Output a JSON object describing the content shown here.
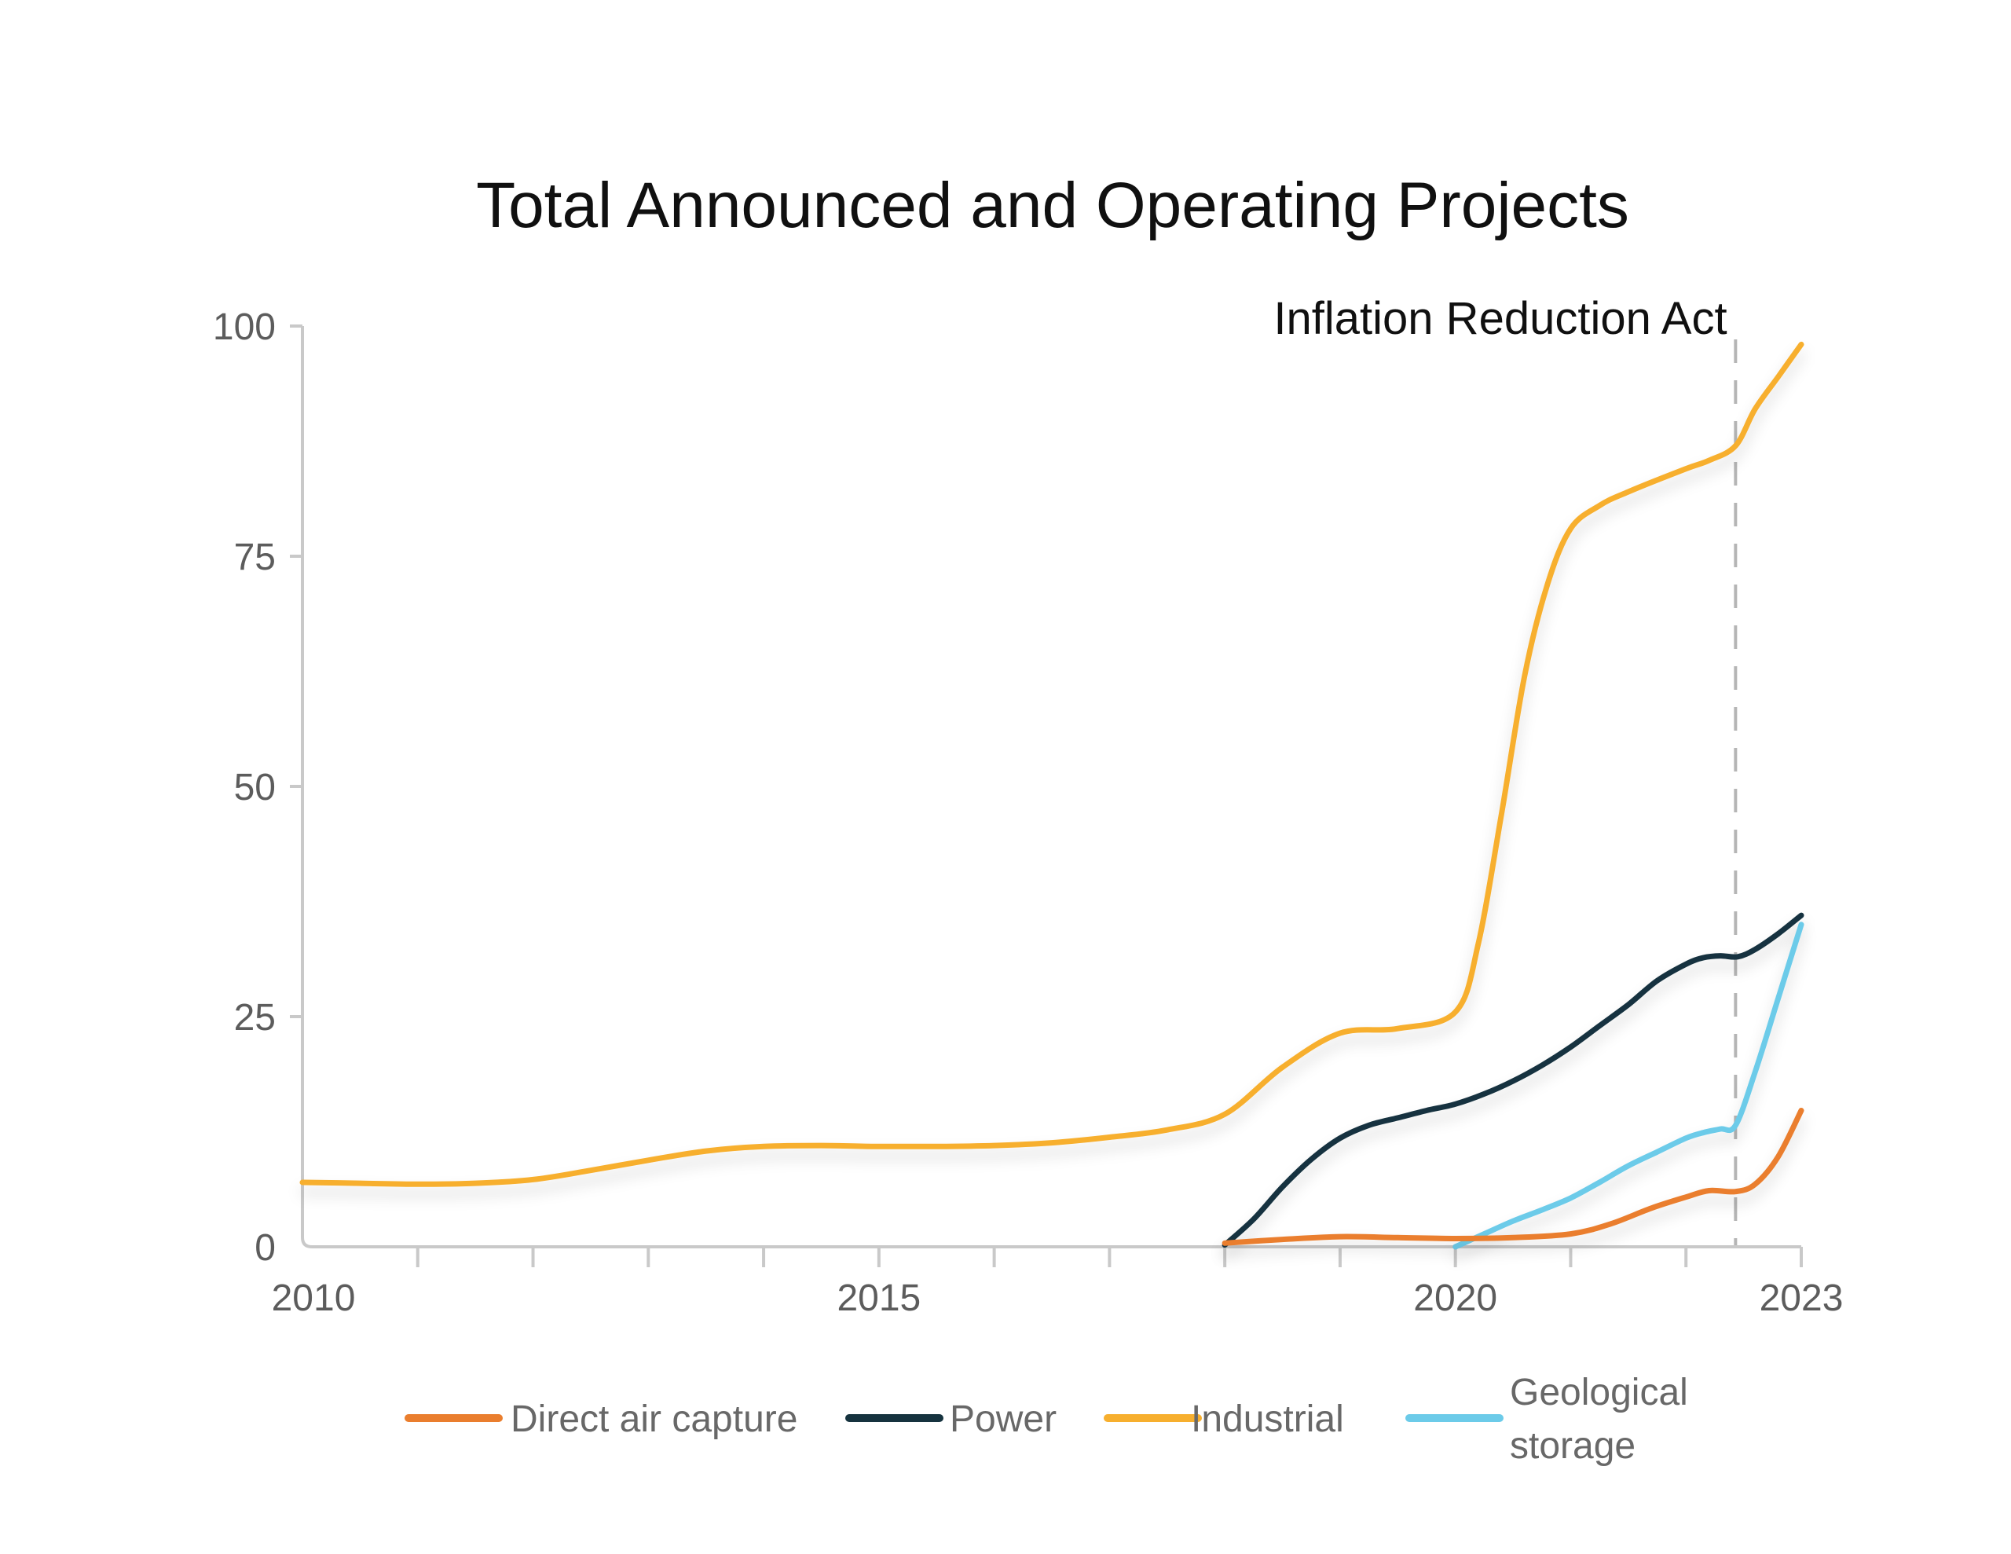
{
  "title": "Total Announced and Operating Projects",
  "annotation": {
    "text": "Inflation Reduction Act"
  },
  "y_axis": {
    "tick_labels": [
      "0",
      "25",
      "50",
      "75",
      "100"
    ]
  },
  "x_axis": {
    "tick_labels": [
      "2010",
      "2015",
      "2020",
      "2023"
    ]
  },
  "legend": {
    "items": [
      {
        "label": "Direct air capture",
        "color": "#EA7E2E"
      },
      {
        "label": "Power",
        "color": "#16333F"
      },
      {
        "label": "Industrial",
        "color": "#F7AF2E"
      },
      {
        "label": "Geological\nstorage",
        "color": "#6CCBE9"
      }
    ]
  },
  "chart_data": {
    "type": "line",
    "title": "Total Announced and Operating Projects",
    "xlabel": "",
    "ylabel": "",
    "xlim": [
      2010,
      2023
    ],
    "ylim": [
      0,
      100
    ],
    "x_tick_labeled": [
      2010,
      2015,
      2020,
      2023
    ],
    "x_minor_ticks": [
      2011,
      2012,
      2013,
      2014,
      2015,
      2016,
      2017,
      2018,
      2019,
      2020,
      2021,
      2022,
      2023
    ],
    "y_ticks": [
      0,
      25,
      50,
      75,
      100
    ],
    "grid": false,
    "legend_position": "bottom",
    "annotations": {
      "vline_x": 2022.43,
      "vline_label": "Inflation Reduction Act"
    },
    "series": [
      {
        "name": "Direct air capture",
        "color": "#EA7E2E",
        "points": [
          [
            2018,
            0.4
          ],
          [
            2018.5,
            0.8
          ],
          [
            2019,
            1.1
          ],
          [
            2019.5,
            1.0
          ],
          [
            2020,
            0.9
          ],
          [
            2020.5,
            1.0
          ],
          [
            2021,
            1.4
          ],
          [
            2021.35,
            2.5
          ],
          [
            2021.7,
            4.2
          ],
          [
            2022,
            5.4
          ],
          [
            2022.2,
            6.1
          ],
          [
            2022.43,
            6.0
          ],
          [
            2022.6,
            6.8
          ],
          [
            2022.8,
            9.8
          ],
          [
            2023,
            14.8
          ]
        ]
      },
      {
        "name": "Power",
        "color": "#16333F",
        "points": [
          [
            2018,
            0.2
          ],
          [
            2018.25,
            3.0
          ],
          [
            2018.5,
            6.5
          ],
          [
            2018.75,
            9.5
          ],
          [
            2019,
            11.8
          ],
          [
            2019.25,
            13.2
          ],
          [
            2019.5,
            14.0
          ],
          [
            2019.75,
            14.8
          ],
          [
            2020,
            15.5
          ],
          [
            2020.25,
            16.6
          ],
          [
            2020.5,
            18.0
          ],
          [
            2020.75,
            19.7
          ],
          [
            2021,
            21.7
          ],
          [
            2021.25,
            24.0
          ],
          [
            2021.5,
            26.3
          ],
          [
            2021.75,
            28.9
          ],
          [
            2022,
            30.7
          ],
          [
            2022.15,
            31.4
          ],
          [
            2022.3,
            31.6
          ],
          [
            2022.45,
            31.5
          ],
          [
            2022.6,
            32.3
          ],
          [
            2022.8,
            34.0
          ],
          [
            2023,
            36.0
          ]
        ]
      },
      {
        "name": "Industrial",
        "color": "#F7AF2E",
        "points": [
          [
            2010,
            7.0
          ],
          [
            2010.5,
            6.9
          ],
          [
            2011,
            6.8
          ],
          [
            2011.5,
            6.9
          ],
          [
            2012,
            7.3
          ],
          [
            2012.5,
            8.3
          ],
          [
            2013,
            9.4
          ],
          [
            2013.5,
            10.4
          ],
          [
            2014,
            10.9
          ],
          [
            2014.5,
            11.0
          ],
          [
            2015,
            10.9
          ],
          [
            2015.5,
            10.9
          ],
          [
            2016,
            11.0
          ],
          [
            2016.5,
            11.3
          ],
          [
            2017,
            11.9
          ],
          [
            2017.5,
            12.7
          ],
          [
            2018,
            14.4
          ],
          [
            2018.5,
            19.5
          ],
          [
            2019,
            23.2
          ],
          [
            2019.5,
            23.7
          ],
          [
            2020,
            25.5
          ],
          [
            2020.2,
            33.0
          ],
          [
            2020.4,
            47.0
          ],
          [
            2020.6,
            62.0
          ],
          [
            2020.8,
            72.0
          ],
          [
            2021,
            78.0
          ],
          [
            2021.25,
            80.5
          ],
          [
            2021.5,
            82.0
          ],
          [
            2022,
            84.5
          ],
          [
            2022.2,
            85.4
          ],
          [
            2022.43,
            87.0
          ],
          [
            2022.6,
            91.0
          ],
          [
            2022.8,
            94.5
          ],
          [
            2023,
            98.0
          ]
        ]
      },
      {
        "name": "Geological storage",
        "color": "#6CCBE9",
        "points": [
          [
            2020,
            0.0
          ],
          [
            2020.25,
            1.4
          ],
          [
            2020.5,
            2.8
          ],
          [
            2020.75,
            4.0
          ],
          [
            2021,
            5.3
          ],
          [
            2021.25,
            7.0
          ],
          [
            2021.5,
            8.8
          ],
          [
            2021.75,
            10.3
          ],
          [
            2022,
            11.8
          ],
          [
            2022.15,
            12.4
          ],
          [
            2022.3,
            12.8
          ],
          [
            2022.43,
            13.2
          ],
          [
            2022.6,
            19.0
          ],
          [
            2022.8,
            27.0
          ],
          [
            2023,
            35.0
          ]
        ]
      }
    ]
  }
}
